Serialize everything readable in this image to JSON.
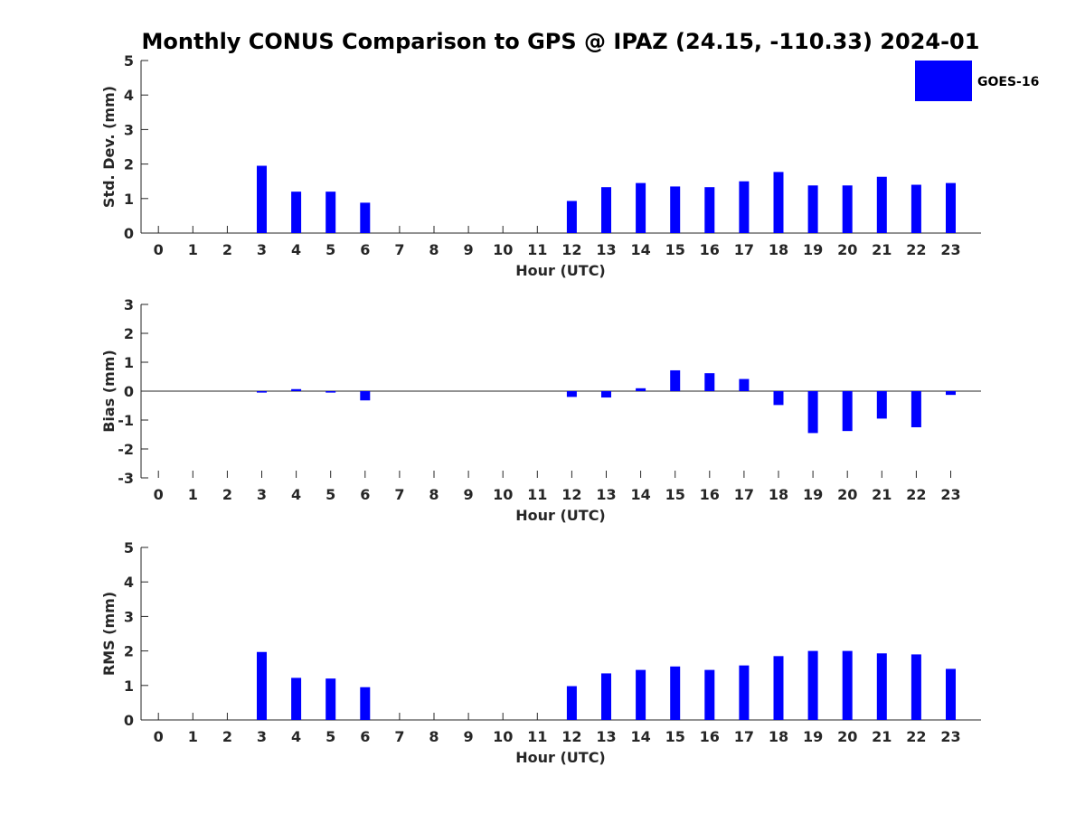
{
  "title": "Monthly CONUS Comparison to GPS @ IPAZ (24.15, -110.33) 2024-01",
  "legend": {
    "label": "GOES-16",
    "color": "#0000ff"
  },
  "chart_data": [
    {
      "type": "bar",
      "name": "std-dev",
      "categories": [
        "0",
        "1",
        "2",
        "3",
        "4",
        "5",
        "6",
        "7",
        "8",
        "9",
        "10",
        "11",
        "12",
        "13",
        "14",
        "15",
        "16",
        "17",
        "18",
        "19",
        "20",
        "21",
        "22",
        "23"
      ],
      "series": [
        {
          "name": "GOES-16",
          "color": "#0000ff",
          "values": [
            null,
            null,
            null,
            1.95,
            1.2,
            1.2,
            0.88,
            null,
            null,
            null,
            null,
            null,
            0.93,
            1.33,
            1.45,
            1.35,
            1.33,
            1.5,
            1.77,
            1.38,
            1.38,
            1.63,
            1.4,
            1.45
          ]
        }
      ],
      "xlabel": "Hour (UTC)",
      "ylabel": "Std. Dev. (mm)",
      "ylim": [
        0,
        5
      ],
      "yticks": [
        "0",
        "1",
        "2",
        "3",
        "4",
        "5"
      ],
      "grid": false
    },
    {
      "type": "bar",
      "name": "bias",
      "categories": [
        "0",
        "1",
        "2",
        "3",
        "4",
        "5",
        "6",
        "7",
        "8",
        "9",
        "10",
        "11",
        "12",
        "13",
        "14",
        "15",
        "16",
        "17",
        "18",
        "19",
        "20",
        "21",
        "22",
        "23"
      ],
      "series": [
        {
          "name": "GOES-16",
          "color": "#0000ff",
          "values": [
            null,
            null,
            null,
            -0.05,
            0.07,
            -0.05,
            -0.32,
            null,
            null,
            null,
            null,
            null,
            -0.2,
            -0.22,
            0.1,
            0.72,
            0.62,
            0.42,
            -0.48,
            -1.45,
            -1.38,
            -0.95,
            -1.25,
            -0.13
          ]
        }
      ],
      "xlabel": "Hour (UTC)",
      "ylabel": "Bias (mm)",
      "ylim": [
        -3,
        3
      ],
      "yticks": [
        "-3",
        "-2",
        "-1",
        "0",
        "1",
        "2",
        "3"
      ],
      "grid": false
    },
    {
      "type": "bar",
      "name": "rms",
      "categories": [
        "0",
        "1",
        "2",
        "3",
        "4",
        "5",
        "6",
        "7",
        "8",
        "9",
        "10",
        "11",
        "12",
        "13",
        "14",
        "15",
        "16",
        "17",
        "18",
        "19",
        "20",
        "21",
        "22",
        "23"
      ],
      "series": [
        {
          "name": "GOES-16",
          "color": "#0000ff",
          "values": [
            null,
            null,
            null,
            1.97,
            1.22,
            1.2,
            0.95,
            null,
            null,
            null,
            null,
            null,
            0.98,
            1.35,
            1.45,
            1.55,
            1.45,
            1.58,
            1.85,
            2.0,
            2.0,
            1.93,
            1.9,
            1.48
          ]
        }
      ],
      "xlabel": "Hour (UTC)",
      "ylabel": "RMS (mm)",
      "ylim": [
        0,
        5
      ],
      "yticks": [
        "0",
        "1",
        "2",
        "3",
        "4",
        "5"
      ],
      "grid": false
    }
  ]
}
